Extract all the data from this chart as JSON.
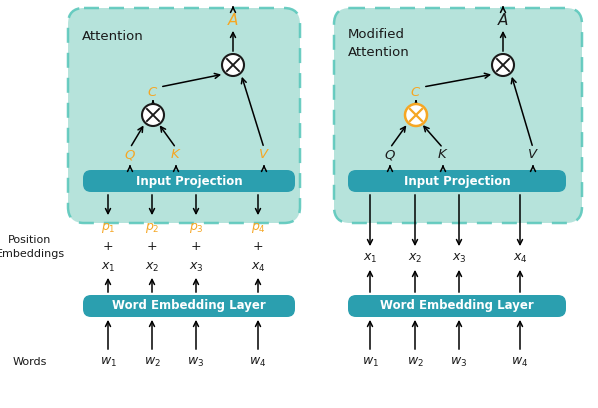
{
  "bg_color": "#ffffff",
  "panel_bg": "#aee0d8",
  "box_color": "#2b9faf",
  "box_text_color": "#ffffff",
  "orange_color": "#f5a623",
  "black_color": "#1a1a1a",
  "dashed_border_color": "#5cc8bc",
  "input_proj_text": "Input Projection",
  "word_emb_text": "Word Embedding Layer",
  "left_panel_label": "Attention",
  "right_panel_label1": "Modified",
  "right_panel_label2": "Attention",
  "pos_emb_label": "Position\nEmbeddings",
  "words_label": "Words",
  "p_labels": [
    "$p_1$",
    "$p_2$",
    "$p_3$",
    "$p_4$"
  ],
  "x_labels": [
    "$x_1$",
    "$x_2$",
    "$x_3$",
    "$x_4$"
  ],
  "w_labels": [
    "$w_1$",
    "$w_2$",
    "$w_3$",
    "$w_4$"
  ]
}
